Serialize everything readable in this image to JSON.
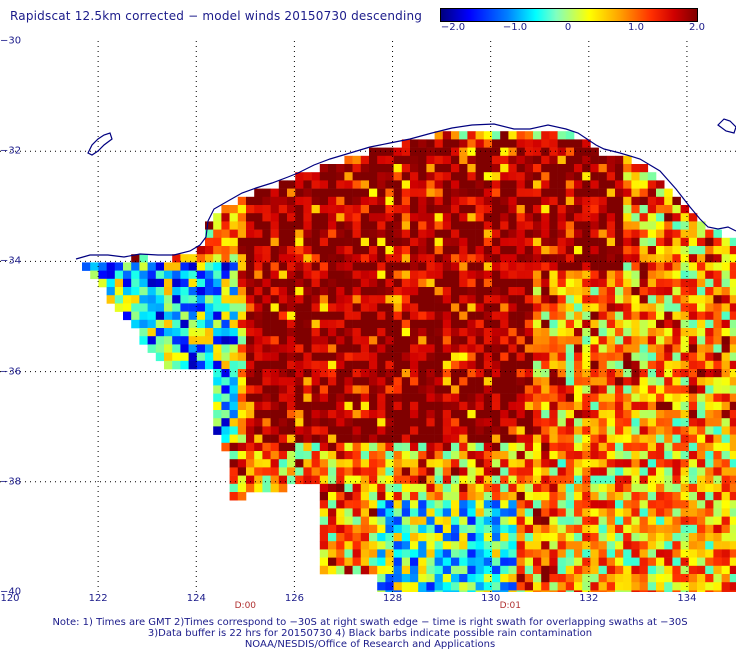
{
  "title": "Rapidscat 12.5km corrected − model winds 20150730 descending",
  "colorbar": {
    "ticks": [
      {
        "value": -2.0,
        "label": "−2.0"
      },
      {
        "value": -1.0,
        "label": "−1.0"
      },
      {
        "value": 0,
        "label": "0"
      },
      {
        "value": 1.0,
        "label": "1.0"
      },
      {
        "value": 2.0,
        "label": "2.0"
      }
    ],
    "range": [
      -2.0,
      2.0
    ],
    "colormap": [
      "#00007f",
      "#0000ff",
      "#00ffff",
      "#ffff00",
      "#ff0000",
      "#800000"
    ]
  },
  "map": {
    "lon_range": [
      120,
      135
    ],
    "lat_range": [
      -40,
      -30
    ],
    "lon_ticks": [
      "120",
      "122",
      "124",
      "126",
      "128",
      "130",
      "132",
      "134"
    ],
    "lat_ticks": [
      "−30",
      "−32",
      "−34",
      "−36",
      "−38",
      "−40"
    ],
    "grid": "dotted",
    "coast_color": "#000080"
  },
  "time_labels": [
    {
      "lon": 125,
      "label": "D:00"
    },
    {
      "lon": 130.4,
      "label": "D:01"
    }
  ],
  "notes": [
    "Note: 1) Times are GMT 2)Times correspond to −30S at right swath edge − time is right swath for overlapping swaths at −30S",
    "3)Data buffer is 22 hrs for 20150730 4) Black barbs indicate possible rain contamination",
    "NOAA/NESDIS/Office of Research and Applications"
  ]
}
